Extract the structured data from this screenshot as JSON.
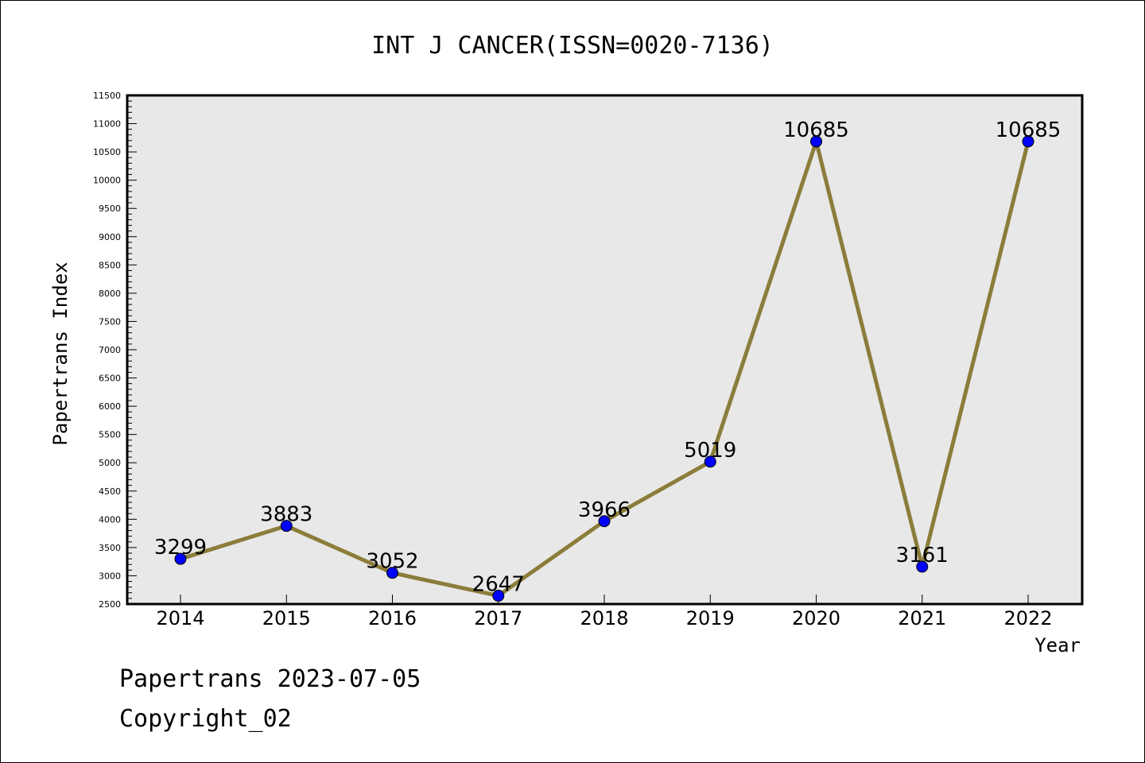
{
  "chart_data": {
    "type": "line",
    "title": "INT J CANCER(ISSN=0020-7136)",
    "xlabel": "Year",
    "ylabel": "Papertrans Index",
    "categories": [
      "2014",
      "2015",
      "2016",
      "2017",
      "2018",
      "2019",
      "2020",
      "2021",
      "2022"
    ],
    "series": [
      {
        "values": [
          3299,
          3883,
          3052,
          2647,
          3966,
          5019,
          10685,
          3161,
          10685
        ]
      }
    ],
    "ylim": [
      2500,
      11500
    ],
    "yticks": [
      2500,
      3000,
      3500,
      4000,
      4500,
      5000,
      5500,
      6000,
      6500,
      7000,
      7500,
      8000,
      8500,
      9000,
      9500,
      10000,
      10500,
      11000,
      11500
    ],
    "grid": false,
    "colors": {
      "line": "#8b7d3a",
      "marker": "#0000ff",
      "plot_bg": "#e8e8e8"
    }
  },
  "footer": {
    "line1": "Papertrans 2023-07-05",
    "line2": "Copyright_02"
  }
}
